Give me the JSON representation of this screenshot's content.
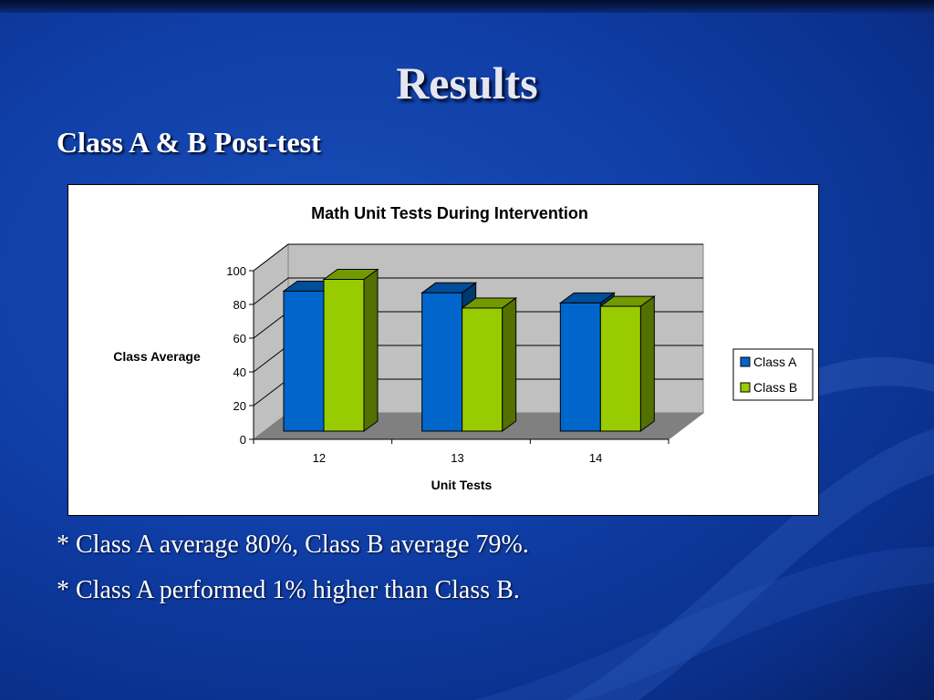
{
  "slide": {
    "title": "Results",
    "subtitle": "Class A & B Post-test",
    "notes": [
      "* Class A average 80%, Class B average 79%.",
      "* Class A performed 1% higher than Class B."
    ]
  },
  "colors": {
    "class_a": "#0066cc",
    "class_b": "#99cc00",
    "background": "#0f3ea6"
  },
  "chart_data": {
    "type": "bar",
    "title": "Math Unit Tests During Intervention",
    "xlabel": "Unit Tests",
    "ylabel": "Class Average",
    "categories": [
      "12",
      "13",
      "14"
    ],
    "series": [
      {
        "name": "Class A",
        "values": [
          83,
          82,
          76
        ]
      },
      {
        "name": "Class B",
        "values": [
          90,
          73,
          74
        ]
      }
    ],
    "ylim": [
      0,
      100
    ],
    "yticks": [
      0,
      20,
      40,
      60,
      80,
      100
    ],
    "grid": true,
    "legend": "right",
    "style": "3d"
  }
}
